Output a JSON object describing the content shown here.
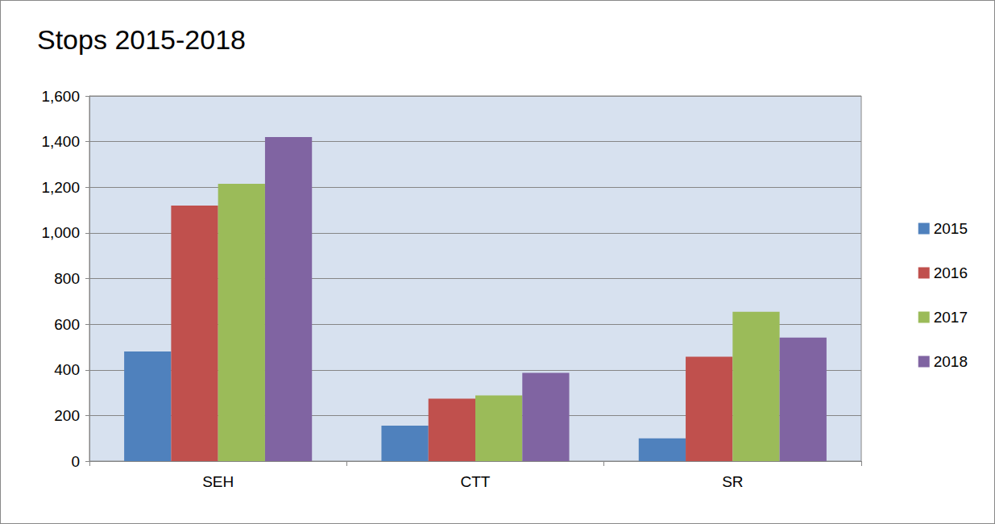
{
  "chart_data": {
    "type": "bar",
    "title": "Stops 2015-2018",
    "categories": [
      "SEH",
      "CTT",
      "SR"
    ],
    "series": [
      {
        "name": "2015",
        "color": "#4f81bd",
        "values": [
          480,
          155,
          100
        ]
      },
      {
        "name": "2016",
        "color": "#c0504d",
        "values": [
          1120,
          274,
          457
        ]
      },
      {
        "name": "2017",
        "color": "#9bbb59",
        "values": [
          1215,
          288,
          654
        ]
      },
      {
        "name": "2018",
        "color": "#8064a2",
        "values": [
          1420,
          387,
          541
        ]
      }
    ],
    "ylim": [
      0,
      1600
    ],
    "yticks": [
      0,
      200,
      400,
      600,
      800,
      1000,
      1200,
      1400,
      1600
    ],
    "grid": true,
    "legend": "right"
  }
}
